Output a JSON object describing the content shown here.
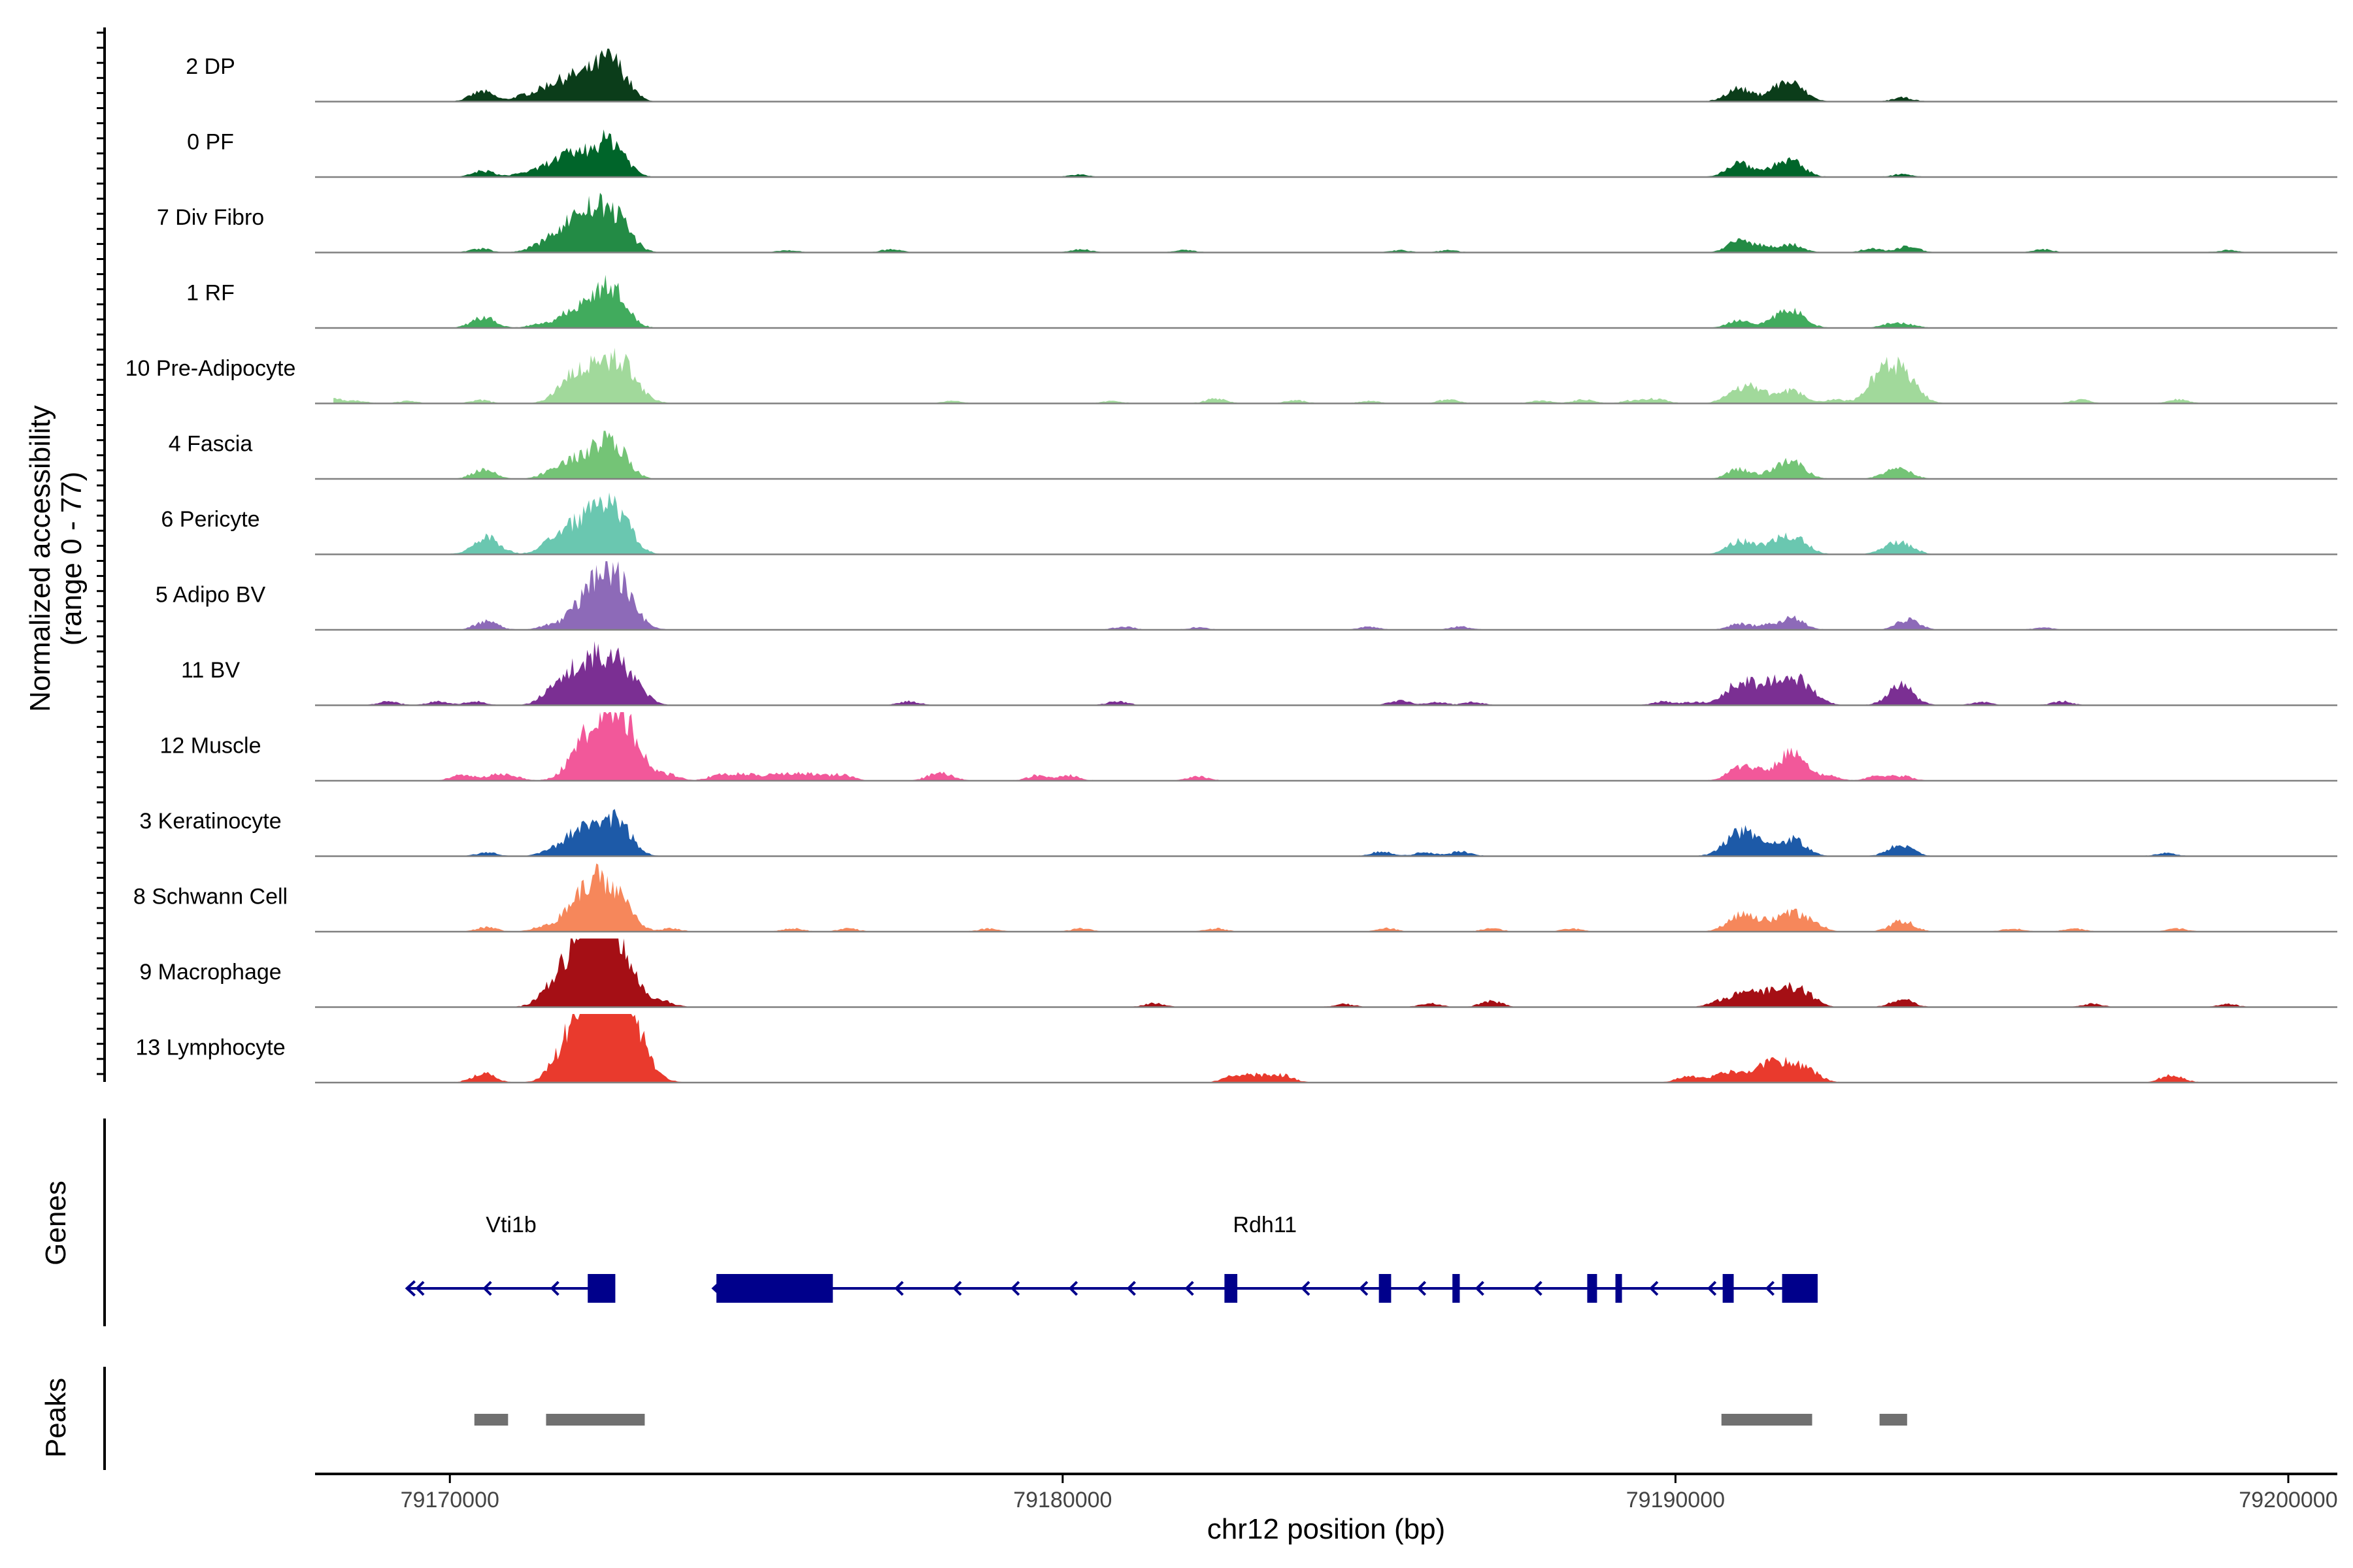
{
  "chart_data": {
    "type": "area",
    "chromosome": "chr12",
    "x_range_bp": [
      79167800,
      79200800
    ],
    "y_range": [
      0,
      77
    ],
    "ylabel_line1": "Normalized accessibility",
    "ylabel_line2": "(range 0 - 77)",
    "xlabel": "chr12 position (bp)",
    "x_ticks": [
      {
        "value": 79170000,
        "label": "79170000"
      },
      {
        "value": 79180000,
        "label": "79180000"
      },
      {
        "value": 79190000,
        "label": "79190000"
      },
      {
        "value": 79200000,
        "label": "79200000"
      }
    ],
    "tracks": [
      {
        "label": "2 DP",
        "color": "#0b3d1a",
        "peaks": [
          [
            79170530,
            13
          ],
          [
            79171200,
            7
          ],
          [
            79171600,
            16
          ],
          [
            79171950,
            22
          ],
          [
            79172150,
            11
          ],
          [
            79172450,
            20
          ],
          [
            79172620,
            32
          ],
          [
            79172780,
            14
          ],
          [
            79191030,
            17
          ],
          [
            79191600,
            10
          ],
          [
            79191900,
            22
          ],
          [
            79193700,
            5
          ]
        ]
      },
      {
        "label": "0 PF",
        "color": "#00652a",
        "peaks": [
          [
            79170550,
            8
          ],
          [
            79171200,
            5
          ],
          [
            79171600,
            12
          ],
          [
            79171950,
            22
          ],
          [
            79172150,
            10
          ],
          [
            79172450,
            19
          ],
          [
            79172620,
            27
          ],
          [
            79172780,
            12
          ],
          [
            79191050,
            19
          ],
          [
            79191600,
            8
          ],
          [
            79191900,
            19
          ],
          [
            79193700,
            4
          ],
          [
            79180250,
            3
          ]
        ]
      },
      {
        "label": "7 Div Fibro",
        "color": "#238b45",
        "peaks": [
          [
            79170500,
            5
          ],
          [
            79171350,
            5
          ],
          [
            79171650,
            9
          ],
          [
            79171950,
            28
          ],
          [
            79172200,
            22
          ],
          [
            79172450,
            25
          ],
          [
            79172620,
            26
          ],
          [
            79172850,
            18
          ],
          [
            79175500,
            3
          ],
          [
            79177200,
            4
          ],
          [
            79180300,
            4
          ],
          [
            79182000,
            3
          ],
          [
            79185500,
            3
          ],
          [
            79186300,
            3
          ],
          [
            79191050,
            15
          ],
          [
            79191450,
            7
          ],
          [
            79191900,
            10
          ],
          [
            79193200,
            5
          ],
          [
            79193800,
            8
          ],
          [
            79196000,
            4
          ],
          [
            79199000,
            3
          ]
        ]
      },
      {
        "label": "1 RF",
        "color": "#41ab5d",
        "peaks": [
          [
            79170550,
            14
          ],
          [
            79171450,
            5
          ],
          [
            79171950,
            18
          ],
          [
            79172150,
            8
          ],
          [
            79172450,
            20
          ],
          [
            79172620,
            33
          ],
          [
            79172780,
            10
          ],
          [
            79191050,
            11
          ],
          [
            79191600,
            6
          ],
          [
            79191900,
            22
          ],
          [
            79193500,
            5
          ],
          [
            79193800,
            4
          ]
        ]
      },
      {
        "label": "10 Pre-Adipocyte",
        "color": "#a1d99b",
        "peaks": [
          [
            79168000,
            9
          ],
          [
            79168500,
            3
          ],
          [
            79169300,
            3
          ],
          [
            79170500,
            4
          ],
          [
            79171800,
            5
          ],
          [
            79172050,
            32
          ],
          [
            79172620,
            52
          ],
          [
            79172900,
            14
          ],
          [
            79173200,
            3
          ],
          [
            79178200,
            3
          ],
          [
            79180800,
            3
          ],
          [
            79182500,
            6
          ],
          [
            79183800,
            4
          ],
          [
            79185000,
            3
          ],
          [
            79186300,
            5
          ],
          [
            79187800,
            4
          ],
          [
            79188500,
            5
          ],
          [
            79189300,
            4
          ],
          [
            79189700,
            6
          ],
          [
            79191050,
            20
          ],
          [
            79191400,
            12
          ],
          [
            79191900,
            16
          ],
          [
            79192600,
            5
          ],
          [
            79193300,
            18
          ],
          [
            79193550,
            35
          ],
          [
            79193800,
            18
          ],
          [
            79196600,
            5
          ],
          [
            79198200,
            5
          ]
        ]
      },
      {
        "label": "4 Fascia",
        "color": "#74c476",
        "peaks": [
          [
            79170550,
            12
          ],
          [
            79171600,
            6
          ],
          [
            79171950,
            19
          ],
          [
            79172200,
            10
          ],
          [
            79172450,
            17
          ],
          [
            79172620,
            32
          ],
          [
            79172780,
            10
          ],
          [
            79191050,
            13
          ],
          [
            79191600,
            7
          ],
          [
            79191900,
            21
          ],
          [
            79193500,
            9
          ],
          [
            79193750,
            8
          ]
        ]
      },
      {
        "label": "6 Pericyte",
        "color": "#6ac7b0",
        "peaks": [
          [
            79170600,
            22
          ],
          [
            79171600,
            10
          ],
          [
            79171950,
            25
          ],
          [
            79172300,
            28
          ],
          [
            79172620,
            42
          ],
          [
            79172800,
            16
          ],
          [
            79191050,
            17
          ],
          [
            79191500,
            8
          ],
          [
            79191900,
            25
          ],
          [
            79193500,
            9
          ],
          [
            79193750,
            11
          ]
        ]
      },
      {
        "label": "5 Adipo BV",
        "color": "#8d6ab8",
        "peaks": [
          [
            79170600,
            11
          ],
          [
            79171600,
            5
          ],
          [
            79172050,
            17
          ],
          [
            79172450,
            28
          ],
          [
            79172620,
            51
          ],
          [
            79172850,
            16
          ],
          [
            79181000,
            4
          ],
          [
            79182200,
            3
          ],
          [
            79185000,
            4
          ],
          [
            79186500,
            4
          ],
          [
            79191050,
            8
          ],
          [
            79191500,
            5
          ],
          [
            79191900,
            15
          ],
          [
            79193750,
            10
          ],
          [
            79193900,
            4
          ],
          [
            79196000,
            3
          ]
        ]
      },
      {
        "label": "11 BV",
        "color": "#7b2f93",
        "peaks": [
          [
            79169000,
            5
          ],
          [
            79169800,
            5
          ],
          [
            79170400,
            5
          ],
          [
            79171600,
            9
          ],
          [
            79172050,
            40
          ],
          [
            79172350,
            12
          ],
          [
            79172620,
            50
          ],
          [
            79172850,
            15
          ],
          [
            79173200,
            5
          ],
          [
            79177500,
            5
          ],
          [
            79180900,
            5
          ],
          [
            79185500,
            6
          ],
          [
            79186100,
            4
          ],
          [
            79186700,
            4
          ],
          [
            79189800,
            5
          ],
          [
            79190300,
            4
          ],
          [
            79191050,
            28
          ],
          [
            79191350,
            8
          ],
          [
            79191600,
            12
          ],
          [
            79191900,
            35
          ],
          [
            79192300,
            6
          ],
          [
            79193600,
            14
          ],
          [
            79193750,
            14
          ],
          [
            79195000,
            4
          ],
          [
            79196300,
            5
          ]
        ]
      },
      {
        "label": "12 Muscle",
        "color": "#f2589a",
        "peaks": [
          [
            79170200,
            8
          ],
          [
            79170700,
            6
          ],
          [
            79171000,
            6
          ],
          [
            79172050,
            15
          ],
          [
            79172450,
            23
          ],
          [
            79172620,
            73
          ],
          [
            79172800,
            18
          ],
          [
            79173000,
            7
          ],
          [
            79173600,
            6
          ],
          [
            79174400,
            8
          ],
          [
            79174800,
            9
          ],
          [
            79175300,
            9
          ],
          [
            79175700,
            8
          ],
          [
            79176000,
            6
          ],
          [
            79176400,
            8
          ],
          [
            79177900,
            6
          ],
          [
            79178100,
            6
          ],
          [
            79179600,
            7
          ],
          [
            79180100,
            7
          ],
          [
            79182200,
            6
          ],
          [
            79191050,
            16
          ],
          [
            79191300,
            9
          ],
          [
            79191800,
            22
          ],
          [
            79192000,
            18
          ],
          [
            79192500,
            6
          ],
          [
            79193300,
            6
          ],
          [
            79193700,
            6
          ]
        ]
      },
      {
        "label": "3 Keratinocyte",
        "color": "#1d5aa8",
        "peaks": [
          [
            79170600,
            5
          ],
          [
            79171600,
            5
          ],
          [
            79172050,
            27
          ],
          [
            79172300,
            8
          ],
          [
            79172620,
            38
          ],
          [
            79172800,
            15
          ],
          [
            79185200,
            6
          ],
          [
            79185900,
            5
          ],
          [
            79186500,
            6
          ],
          [
            79191050,
            30
          ],
          [
            79191400,
            10
          ],
          [
            79191900,
            22
          ],
          [
            79193600,
            10
          ],
          [
            79193800,
            6
          ],
          [
            79198000,
            4
          ]
        ]
      },
      {
        "label": "8 Schwann Cell",
        "color": "#f6875b",
        "peaks": [
          [
            79170600,
            6
          ],
          [
            79171500,
            5
          ],
          [
            79172100,
            37
          ],
          [
            79172300,
            12
          ],
          [
            79172500,
            30
          ],
          [
            79172700,
            28
          ],
          [
            79172900,
            12
          ],
          [
            79173600,
            4
          ],
          [
            79175600,
            4
          ],
          [
            79176500,
            4
          ],
          [
            79178800,
            4
          ],
          [
            79180300,
            4
          ],
          [
            79182500,
            4
          ],
          [
            79185300,
            4
          ],
          [
            79187000,
            4
          ],
          [
            79188300,
            4
          ],
          [
            79191050,
            20
          ],
          [
            79191400,
            10
          ],
          [
            79191900,
            26
          ],
          [
            79192300,
            6
          ],
          [
            79193700,
            14
          ],
          [
            79195500,
            4
          ],
          [
            79196500,
            4
          ],
          [
            79198200,
            4
          ]
        ]
      },
      {
        "label": "9 Macrophage",
        "color": "#a50f15",
        "peaks": [
          [
            79171600,
            8
          ],
          [
            79172050,
            55
          ],
          [
            79172250,
            20
          ],
          [
            79172450,
            44
          ],
          [
            79172620,
            63
          ],
          [
            79172900,
            15
          ],
          [
            79173500,
            6
          ],
          [
            79181500,
            5
          ],
          [
            79184600,
            4
          ],
          [
            79186000,
            5
          ],
          [
            79187000,
            8
          ],
          [
            79190700,
            6
          ],
          [
            79191050,
            15
          ],
          [
            79191400,
            12
          ],
          [
            79191600,
            10
          ],
          [
            79191900,
            22
          ],
          [
            79192200,
            8
          ],
          [
            79193700,
            10
          ],
          [
            79196800,
            4
          ],
          [
            79199000,
            4
          ]
        ]
      },
      {
        "label": "13 Lymphocyte",
        "color": "#e93a2d",
        "peaks": [
          [
            79170550,
            12
          ],
          [
            79171850,
            25
          ],
          [
            79172100,
            30
          ],
          [
            79172350,
            28
          ],
          [
            79172550,
            42
          ],
          [
            79172620,
            77
          ],
          [
            79172800,
            38
          ],
          [
            79173100,
            10
          ],
          [
            79182800,
            9
          ],
          [
            79183200,
            9
          ],
          [
            79183600,
            9
          ],
          [
            79190200,
            8
          ],
          [
            79190700,
            8
          ],
          [
            79191000,
            10
          ],
          [
            79191400,
            12
          ],
          [
            79191600,
            14
          ],
          [
            79191900,
            18
          ],
          [
            79192200,
            12
          ],
          [
            79198100,
            10
          ]
        ]
      }
    ],
    "genes_label": "Genes",
    "genes": [
      {
        "name": "Vti1b",
        "label_x": 79171000,
        "strand": "-",
        "start": 79169300,
        "end": 79172600,
        "exons": [
          [
            79172250,
            79172700
          ]
        ]
      },
      {
        "name": "Rdh11",
        "label_x": 79183300,
        "strand": "-",
        "start": 79174300,
        "end": 79192300,
        "exons": [
          [
            79174350,
            79176250
          ],
          [
            79182640,
            79182850
          ],
          [
            79185160,
            79185360
          ],
          [
            79186360,
            79186480
          ],
          [
            79188560,
            79188720
          ],
          [
            79189020,
            79189120
          ],
          [
            79190770,
            79190950
          ],
          [
            79191740,
            79192320
          ]
        ]
      }
    ],
    "peaks_label": "Peaks",
    "peak_regions": [
      [
        79170400,
        79170950
      ],
      [
        79171570,
        79173180
      ],
      [
        79190750,
        79192230
      ],
      [
        79193330,
        79193780
      ]
    ]
  }
}
